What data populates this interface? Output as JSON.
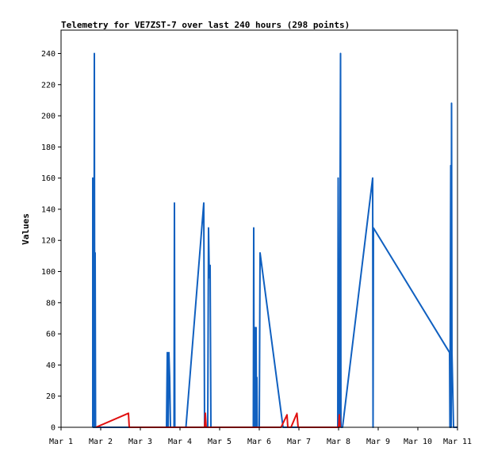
{
  "chart_data": {
    "type": "line",
    "title": "Telemetry for VE7ZST-7 over last 240 hours (298 points)",
    "xlabel": "",
    "ylabel": "Values",
    "x_ticks": [
      "Mar 1",
      "Mar 2",
      "Mar 3",
      "Mar 4",
      "Mar 5",
      "Mar 6",
      "Mar 7",
      "Mar 8",
      "Mar 9",
      "Mar 10",
      "Mar 11"
    ],
    "xlim": [
      0,
      10
    ],
    "y_ticks": [
      0,
      20,
      40,
      60,
      80,
      100,
      120,
      140,
      160,
      180,
      200,
      220,
      240
    ],
    "ylim": [
      0,
      255
    ],
    "grid": false,
    "legend": "none",
    "series": [
      {
        "color": "#1060c0",
        "x_unit": "days since Mar 1",
        "points": [
          [
            0.8,
            0
          ],
          [
            0.8,
            160
          ],
          [
            0.81,
            0
          ],
          [
            0.82,
            32
          ],
          [
            0.83,
            0
          ],
          [
            0.84,
            240
          ],
          [
            0.85,
            0
          ],
          [
            0.86,
            112
          ],
          [
            0.87,
            0
          ],
          [
            0.9,
            0
          ],
          [
            2.66,
            0
          ],
          [
            2.68,
            48
          ],
          [
            2.7,
            0
          ],
          [
            2.72,
            48
          ],
          [
            2.74,
            32
          ],
          [
            2.76,
            0
          ],
          [
            2.85,
            0
          ],
          [
            2.86,
            144
          ],
          [
            2.87,
            0
          ],
          [
            3.15,
            0
          ],
          [
            3.6,
            144
          ],
          [
            3.62,
            0
          ],
          [
            3.7,
            0
          ],
          [
            3.72,
            128
          ],
          [
            3.74,
            96
          ],
          [
            3.76,
            104
          ],
          [
            3.78,
            0
          ],
          [
            3.82,
            0
          ],
          [
            4.85,
            0
          ],
          [
            4.86,
            128
          ],
          [
            4.87,
            0
          ],
          [
            4.88,
            16
          ],
          [
            4.89,
            64
          ],
          [
            4.9,
            0
          ],
          [
            4.92,
            64
          ],
          [
            4.93,
            0
          ],
          [
            4.94,
            32
          ],
          [
            4.95,
            0
          ],
          [
            5.0,
            0
          ],
          [
            5.02,
            112
          ],
          [
            5.6,
            0
          ],
          [
            6.98,
            0
          ],
          [
            6.99,
            160
          ],
          [
            7.0,
            0
          ],
          [
            7.01,
            80
          ],
          [
            7.02,
            0
          ],
          [
            7.05,
            240
          ],
          [
            7.06,
            0
          ],
          [
            7.1,
            0
          ],
          [
            7.86,
            160
          ],
          [
            7.87,
            0
          ],
          [
            7.88,
            128
          ],
          [
            9.8,
            48
          ],
          [
            9.81,
            0
          ],
          [
            9.82,
            88
          ],
          [
            9.83,
            168
          ],
          [
            9.84,
            0
          ],
          [
            9.85,
            208
          ],
          [
            9.86,
            48
          ],
          [
            9.9,
            0
          ],
          [
            10.0,
            0
          ]
        ]
      },
      {
        "color": "#e01010",
        "x_unit": "days since Mar 1",
        "points": [
          [
            0.88,
            0
          ],
          [
            1.7,
            9
          ],
          [
            1.72,
            0
          ],
          [
            3.62,
            0
          ],
          [
            3.64,
            9
          ],
          [
            3.66,
            0
          ],
          [
            5.55,
            0
          ],
          [
            5.7,
            8
          ],
          [
            5.72,
            0
          ],
          [
            5.8,
            0
          ],
          [
            5.95,
            9
          ],
          [
            5.98,
            0
          ],
          [
            7.0,
            0
          ],
          [
            7.02,
            8
          ],
          [
            7.04,
            0
          ]
        ]
      }
    ]
  }
}
